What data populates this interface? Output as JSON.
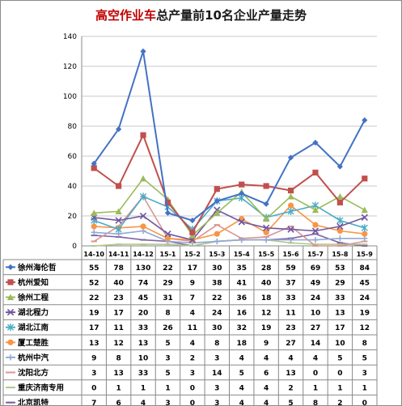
{
  "title": {
    "accent": "高空作业车",
    "rest": "总产量前10名企业产量走势"
  },
  "chart_data": {
    "type": "line",
    "title": "高空作业车总产量前10名企业产量走势",
    "categories": [
      "14-10",
      "14-11",
      "14-12",
      "15-1",
      "15-2",
      "15-3",
      "15-4",
      "15-5",
      "15-6",
      "15-7",
      "15-8",
      "15-9"
    ],
    "ylim": [
      0,
      140
    ],
    "yticks": [
      0,
      20,
      40,
      60,
      80,
      100,
      120,
      140
    ],
    "grid": true,
    "legend": "table-below",
    "series": [
      {
        "name": "徐州海伦哲",
        "color": "#4472c4",
        "marker": "diamond",
        "values": [
          55,
          78,
          130,
          22,
          17,
          30,
          35,
          28,
          59,
          69,
          53,
          84
        ]
      },
      {
        "name": "杭州爱知",
        "color": "#c0504d",
        "marker": "square",
        "values": [
          52,
          40,
          74,
          29,
          9,
          38,
          41,
          40,
          37,
          49,
          29,
          45
        ]
      },
      {
        "name": "徐州工程",
        "color": "#9bbb59",
        "marker": "triangle",
        "values": [
          22,
          23,
          45,
          31,
          7,
          22,
          36,
          18,
          33,
          24,
          33,
          24
        ]
      },
      {
        "name": "湖北程力",
        "color": "#7057a0",
        "marker": "x",
        "values": [
          19,
          17,
          20,
          8,
          4,
          24,
          16,
          12,
          11,
          10,
          13,
          19
        ]
      },
      {
        "name": "湖北江南",
        "color": "#4bacc6",
        "marker": "star",
        "values": [
          17,
          11,
          33,
          26,
          11,
          30,
          32,
          19,
          23,
          27,
          17,
          12
        ]
      },
      {
        "name": "厦工楚胜",
        "color": "#f79646",
        "marker": "circle",
        "values": [
          13,
          12,
          13,
          5,
          4,
          8,
          18,
          9,
          27,
          14,
          10,
          8
        ]
      },
      {
        "name": "杭州中汽",
        "color": "#93a9d8",
        "marker": "plus",
        "values": [
          9,
          8,
          10,
          3,
          2,
          3,
          4,
          4,
          4,
          4,
          5,
          5
        ]
      },
      {
        "name": "沈阳北方",
        "color": "#d99694",
        "marker": "dash",
        "values": [
          3,
          13,
          33,
          5,
          3,
          14,
          5,
          6,
          13,
          0,
          0,
          3
        ]
      },
      {
        "name": "重庆济南专用",
        "color": "#b3c98a",
        "marker": "dash",
        "values": [
          0,
          1,
          1,
          1,
          0,
          3,
          4,
          4,
          2,
          1,
          1,
          1
        ]
      },
      {
        "name": "北京凯特",
        "color": "#8064a2",
        "marker": "dash",
        "values": [
          7,
          6,
          4,
          3,
          0,
          3,
          4,
          4,
          5,
          8,
          2,
          0
        ]
      }
    ]
  }
}
